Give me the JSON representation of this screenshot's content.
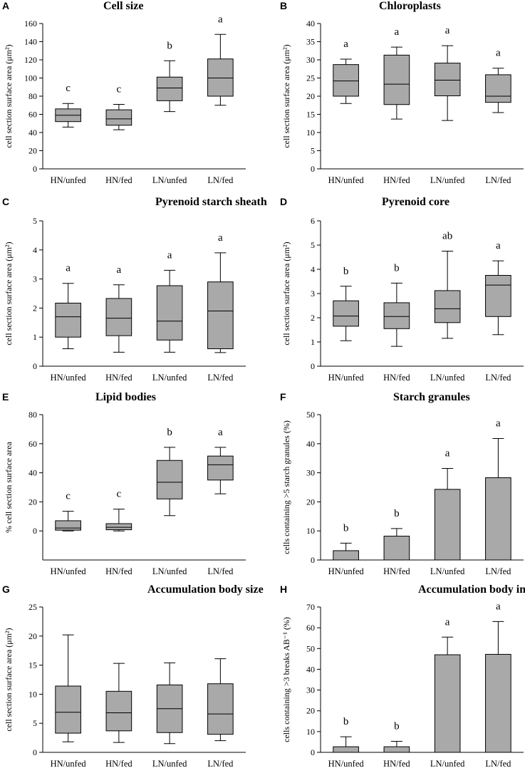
{
  "chart_data": [
    {
      "panel": "A",
      "type": "box",
      "title": "Cell size",
      "ylabel": "cell section surface area (μm²)",
      "ylim": [
        0,
        160
      ],
      "yticks": [
        0,
        20,
        40,
        60,
        80,
        100,
        120,
        140,
        160
      ],
      "categories": [
        "HN/unfed",
        "HN/fed",
        "LN/unfed",
        "LN/fed"
      ],
      "boxes": [
        {
          "whisker_low": 46,
          "q1": 52,
          "median": 59,
          "q3": 66,
          "whisker_high": 72
        },
        {
          "whisker_low": 43,
          "q1": 48,
          "median": 55,
          "q3": 65,
          "whisker_high": 71
        },
        {
          "whisker_low": 63,
          "q1": 75,
          "median": 89,
          "q3": 101,
          "whisker_high": 119
        },
        {
          "whisker_low": 70,
          "q1": 80,
          "median": 100,
          "q3": 121,
          "whisker_high": 148
        }
      ],
      "letters": [
        "c",
        "c",
        "b",
        "a"
      ]
    },
    {
      "panel": "B",
      "type": "box",
      "title": "Chloroplasts",
      "ylabel": "cell section surface area (μm²)",
      "ylim": [
        0,
        40
      ],
      "yticks": [
        0,
        5,
        10,
        15,
        20,
        25,
        30,
        35,
        40
      ],
      "categories": [
        "HN/unfed",
        "HN/fed",
        "LN/unfed",
        "LN/fed"
      ],
      "boxes": [
        {
          "whisker_low": 18,
          "q1": 20,
          "median": 24.2,
          "q3": 28.7,
          "whisker_high": 30.2
        },
        {
          "whisker_low": 13.7,
          "q1": 17.7,
          "median": 23.3,
          "q3": 31.3,
          "whisker_high": 33.5
        },
        {
          "whisker_low": 13.3,
          "q1": 20.1,
          "median": 24.4,
          "q3": 29.1,
          "whisker_high": 33.9
        },
        {
          "whisker_low": 15.5,
          "q1": 18.3,
          "median": 20,
          "q3": 25.9,
          "whisker_high": 27.7
        }
      ],
      "letters": [
        "a",
        "a",
        "a",
        "a"
      ]
    },
    {
      "panel": "C",
      "type": "box",
      "title": "Pyrenoid starch sheath",
      "ylabel": "cell section surface area (μm²)",
      "ylim": [
        0,
        5
      ],
      "yticks": [
        0,
        1,
        2,
        3,
        4,
        5
      ],
      "categories": [
        "HN/unfed",
        "HN/fed",
        "LN/unfed",
        "LN/fed"
      ],
      "boxes": [
        {
          "whisker_low": 0.6,
          "q1": 1.0,
          "median": 1.7,
          "q3": 2.17,
          "whisker_high": 2.85
        },
        {
          "whisker_low": 0.48,
          "q1": 1.05,
          "median": 1.65,
          "q3": 2.33,
          "whisker_high": 2.8
        },
        {
          "whisker_low": 0.48,
          "q1": 0.9,
          "median": 1.55,
          "q3": 2.77,
          "whisker_high": 3.3
        },
        {
          "whisker_low": 0.47,
          "q1": 0.6,
          "median": 1.9,
          "q3": 2.9,
          "whisker_high": 3.9
        }
      ],
      "letters": [
        "a",
        "a",
        "a",
        "a"
      ]
    },
    {
      "panel": "D",
      "type": "box",
      "title": "Pyrenoid core",
      "ylabel": "cell section surface area (μm²)",
      "ylim": [
        0,
        6
      ],
      "yticks": [
        0,
        1,
        2,
        3,
        4,
        5,
        6
      ],
      "categories": [
        "HN/unfed",
        "HN/fed",
        "LN/unfed",
        "LN/fed"
      ],
      "boxes": [
        {
          "whisker_low": 1.05,
          "q1": 1.65,
          "median": 2.07,
          "q3": 2.7,
          "whisker_high": 3.3
        },
        {
          "whisker_low": 0.82,
          "q1": 1.55,
          "median": 2.05,
          "q3": 2.62,
          "whisker_high": 3.43
        },
        {
          "whisker_low": 1.15,
          "q1": 1.8,
          "median": 2.37,
          "q3": 3.12,
          "whisker_high": 4.75
        },
        {
          "whisker_low": 1.3,
          "q1": 2.05,
          "median": 3.35,
          "q3": 3.75,
          "whisker_high": 4.35
        }
      ],
      "letters": [
        "b",
        "b",
        "ab",
        "a"
      ]
    },
    {
      "panel": "E",
      "type": "box",
      "title": "Lipid bodies",
      "ylabel": "% cell section surface area",
      "ylim": [
        -20,
        80
      ],
      "yticks": [
        0,
        20,
        40,
        60,
        80
      ],
      "categories": [
        "HN/unfed",
        "HN/fed",
        "LN/unfed",
        "LN/fed"
      ],
      "boxes": [
        {
          "whisker_low": 0,
          "q1": 0.5,
          "median": 2,
          "q3": 7,
          "whisker_high": 13.5
        },
        {
          "whisker_low": 0,
          "q1": 0.8,
          "median": 2.5,
          "q3": 5,
          "whisker_high": 15
        },
        {
          "whisker_low": 10.5,
          "q1": 22,
          "median": 33.5,
          "q3": 48.5,
          "whisker_high": 57.5
        },
        {
          "whisker_low": 25.5,
          "q1": 35,
          "median": 45.5,
          "q3": 51.5,
          "whisker_high": 57.5
        }
      ],
      "letters": [
        "c",
        "c",
        "b",
        "a"
      ]
    },
    {
      "panel": "F",
      "type": "bar",
      "title": "Starch granules",
      "ylabel": "cells containing >5 starch granules (%)",
      "ylim": [
        0,
        50
      ],
      "yticks": [
        0,
        10,
        20,
        30,
        40,
        50
      ],
      "categories": [
        "HN/unfed",
        "HN/fed",
        "LN/unfed",
        "LN/fed"
      ],
      "values": [
        3.2,
        8.2,
        24.3,
        28.3
      ],
      "errors": [
        5.8,
        10.8,
        31.5,
        41.8
      ],
      "letters": [
        "b",
        "b",
        "a",
        "a"
      ]
    },
    {
      "panel": "G",
      "type": "box",
      "title": "Accumulation body size",
      "ylabel": "cell section surface area (μm²)",
      "ylim": [
        0,
        25
      ],
      "yticks": [
        0,
        5,
        10,
        15,
        20,
        25
      ],
      "categories": [
        "HN/unfed",
        "HN/fed",
        "LN/unfed",
        "LN/fed"
      ],
      "boxes": [
        {
          "whisker_low": 1.8,
          "q1": 3.3,
          "median": 6.9,
          "q3": 11.4,
          "whisker_high": 20.2
        },
        {
          "whisker_low": 1.7,
          "q1": 3.7,
          "median": 6.8,
          "q3": 10.5,
          "whisker_high": 15.3
        },
        {
          "whisker_low": 1.5,
          "q1": 3.4,
          "median": 7.5,
          "q3": 11.6,
          "whisker_high": 15.4
        },
        {
          "whisker_low": 2.0,
          "q1": 3.1,
          "median": 6.6,
          "q3": 11.8,
          "whisker_high": 16.1
        }
      ],
      "letters": []
    },
    {
      "panel": "H",
      "type": "bar",
      "title": "Accumulation body integrity",
      "ylabel": "cells containing >3 breaks AB⁻¹ (%)",
      "ylim": [
        0,
        70
      ],
      "yticks": [
        0,
        10,
        20,
        30,
        40,
        50,
        60,
        70
      ],
      "categories": [
        "HN/unfed",
        "HN/fed",
        "LN/unfed",
        "LN/fed"
      ],
      "values": [
        2.7,
        2.7,
        47,
        47.2
      ],
      "errors": [
        7.5,
        5.3,
        55.5,
        63
      ],
      "letters": [
        "b",
        "b",
        "a",
        "a"
      ]
    }
  ]
}
